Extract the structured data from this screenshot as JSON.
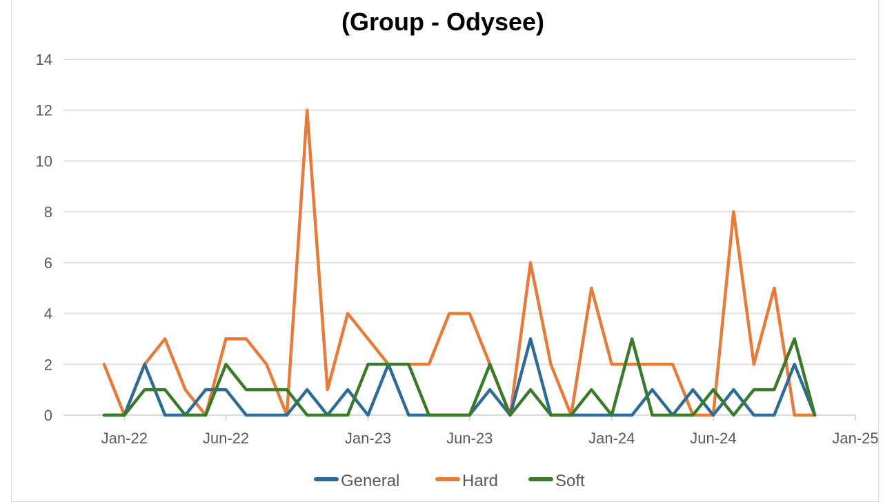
{
  "chart_data": {
    "type": "line",
    "title": "(Group - Odysee)",
    "xlabel": "",
    "ylabel": "",
    "ylim": [
      0,
      14
    ],
    "y_ticks": [
      0,
      2,
      4,
      6,
      8,
      10,
      12,
      14
    ],
    "x_range": [
      "2021-10",
      "2025-01"
    ],
    "x_ticks": [
      {
        "date": "2022-01",
        "label": "Jan-22"
      },
      {
        "date": "2022-06",
        "label": "Jun-22"
      },
      {
        "date": "2023-01",
        "label": "Jan-23"
      },
      {
        "date": "2023-06",
        "label": "Jun-23"
      },
      {
        "date": "2024-01",
        "label": "Jan-24"
      },
      {
        "date": "2024-06",
        "label": "Jun-24"
      },
      {
        "date": "2025-01",
        "label": "Jan-25"
      }
    ],
    "grid": true,
    "legend_position": "bottom",
    "x": [
      "2021-12",
      "2022-01",
      "2022-02",
      "2022-03",
      "2022-04",
      "2022-05",
      "2022-06",
      "2022-07",
      "2022-08",
      "2022-09",
      "2022-10",
      "2022-11",
      "2022-12",
      "2023-01",
      "2023-02",
      "2023-03",
      "2023-04",
      "2023-05",
      "2023-06",
      "2023-07",
      "2023-08",
      "2023-09",
      "2023-10",
      "2023-11",
      "2023-12",
      "2024-01",
      "2024-02",
      "2024-03",
      "2024-04",
      "2024-05",
      "2024-06",
      "2024-07",
      "2024-08",
      "2024-09",
      "2024-10",
      "2024-11"
    ],
    "series": [
      {
        "name": "General",
        "color": "#2e6b96",
        "values": [
          0,
          0,
          2,
          0,
          0,
          1,
          1,
          0,
          0,
          0,
          1,
          0,
          1,
          0,
          2,
          0,
          0,
          0,
          0,
          1,
          0,
          3,
          0,
          0,
          0,
          0,
          0,
          1,
          0,
          1,
          0,
          1,
          0,
          0,
          2,
          0
        ]
      },
      {
        "name": "Hard",
        "color": "#e57c3c",
        "values": [
          2,
          0,
          2,
          3,
          1,
          0,
          3,
          3,
          2,
          0,
          12,
          1,
          4,
          3,
          2,
          2,
          2,
          4,
          4,
          2,
          0,
          6,
          2,
          0,
          5,
          2,
          2,
          2,
          2,
          0,
          0,
          8,
          2,
          5,
          0,
          0
        ]
      },
      {
        "name": "Soft",
        "color": "#3a7a2a",
        "values": [
          0,
          0,
          1,
          1,
          0,
          0,
          2,
          1,
          1,
          1,
          0,
          0,
          0,
          2,
          2,
          2,
          0,
          0,
          0,
          2,
          0,
          1,
          0,
          0,
          1,
          0,
          3,
          0,
          0,
          0,
          1,
          0,
          1,
          1,
          3,
          0
        ]
      }
    ]
  }
}
